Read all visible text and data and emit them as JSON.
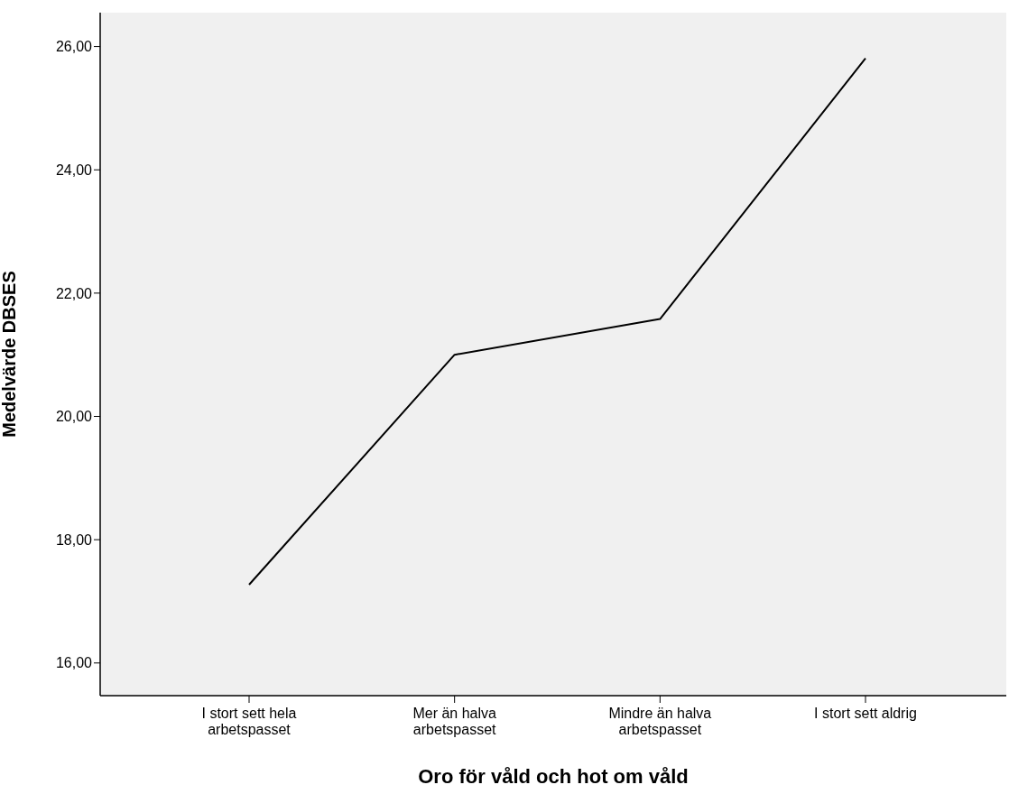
{
  "chart_data": {
    "type": "line",
    "xlabel": "Oro för våld och hot om våld",
    "ylabel": "Medelvärde DBSES",
    "categories": [
      "I stort sett hela arbetspasset",
      "Mer än halva arbetspasset",
      "Mindre än halva arbetspasset",
      "I stort sett aldrig"
    ],
    "series": [
      {
        "color": "#000000",
        "values": [
          17.27,
          21.0,
          21.58,
          25.81
        ]
      }
    ],
    "ylim": [
      15.47,
      26.55
    ],
    "yticks": [
      {
        "value": 16,
        "label": "16,00"
      },
      {
        "value": 18,
        "label": "18,00"
      },
      {
        "value": 20,
        "label": "20,00"
      },
      {
        "value": 22,
        "label": "22,00"
      },
      {
        "value": 24,
        "label": "24,00"
      },
      {
        "value": 26,
        "label": "26,00"
      }
    ],
    "grid": false,
    "marker": "none",
    "line_style": "solid"
  }
}
